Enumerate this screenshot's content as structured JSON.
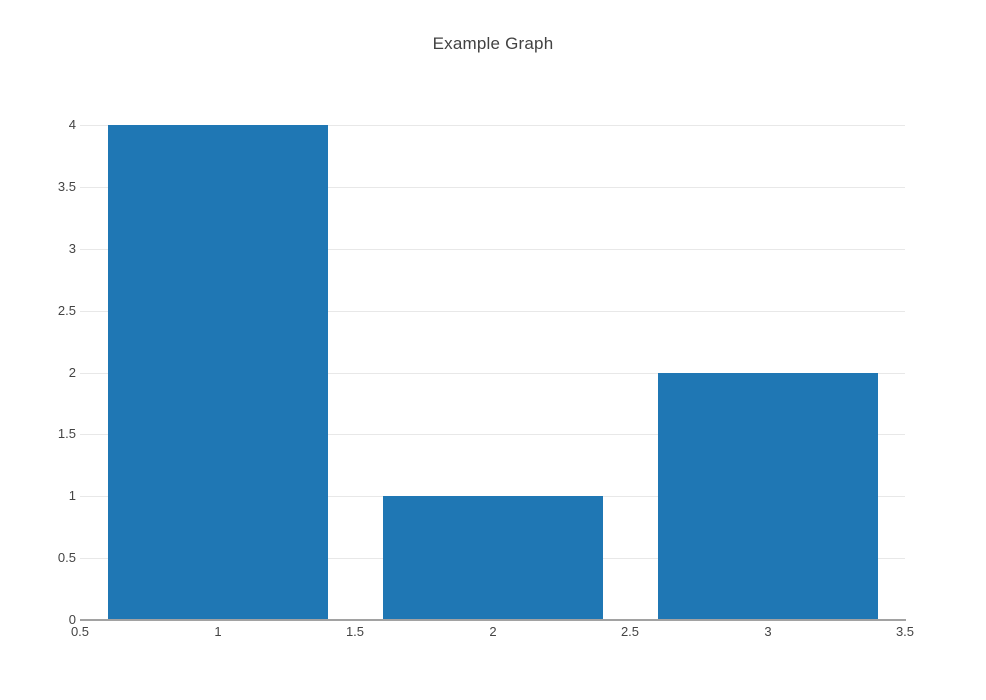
{
  "page": {
    "background_color": "#ffffff"
  },
  "chart_data": {
    "type": "bar",
    "title": "Example Graph",
    "x": [
      1,
      2,
      3
    ],
    "values": [
      4,
      1,
      2
    ],
    "bar_width": 0.8,
    "xlabel": "",
    "ylabel": "",
    "xlim": [
      0.5,
      3.5
    ],
    "ylim": [
      0,
      4
    ],
    "x_ticks": [
      0.5,
      1,
      1.5,
      2,
      2.5,
      3,
      3.5
    ],
    "y_ticks": [
      0,
      0.5,
      1,
      1.5,
      2,
      2.5,
      3,
      3.5,
      4
    ],
    "grid": "horizontal-only",
    "legend": "none",
    "colors": {
      "bar": "#1f77b4",
      "gridline": "#e8e8e8",
      "axis_line": "#a2a2a2",
      "tick_label": "#444444",
      "title": "#424242"
    }
  }
}
